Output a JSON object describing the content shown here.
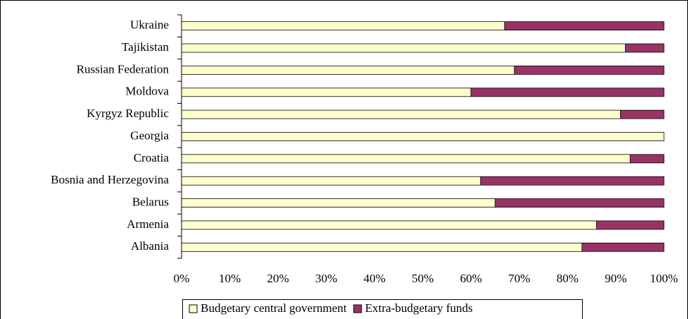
{
  "chart_data": {
    "type": "stacked-bar-horizontal",
    "categories": [
      "Ukraine",
      "Tajikistan",
      "Russian Federation",
      "Moldova",
      "Kyrgyz Republic",
      "Georgia",
      "Croatia",
      "Bosnia and Herzegovina",
      "Belarus",
      "Armenia",
      "Albania"
    ],
    "series": [
      {
        "name": "Budgetary central government",
        "color": "#ffffcc",
        "values": [
          67,
          92,
          69,
          60,
          91,
          100,
          93,
          62,
          65,
          86,
          83
        ]
      },
      {
        "name": "Extra-budgetary funds",
        "color": "#993366",
        "values": [
          33,
          8,
          31,
          40,
          9,
          0,
          7,
          38,
          35,
          14,
          17
        ]
      }
    ],
    "xlim": [
      0,
      100
    ],
    "xticks": [
      {
        "value": 0,
        "label": "0%"
      },
      {
        "value": 10,
        "label": "10%"
      },
      {
        "value": 20,
        "label": "20%"
      },
      {
        "value": 30,
        "label": "30%"
      },
      {
        "value": 40,
        "label": "40%"
      },
      {
        "value": 50,
        "label": "50%"
      },
      {
        "value": 60,
        "label": "60%"
      },
      {
        "value": 70,
        "label": "70%"
      },
      {
        "value": 80,
        "label": "80%"
      },
      {
        "value": 90,
        "label": "90%"
      },
      {
        "value": 100,
        "label": "100%"
      }
    ],
    "legend": "bottom"
  }
}
